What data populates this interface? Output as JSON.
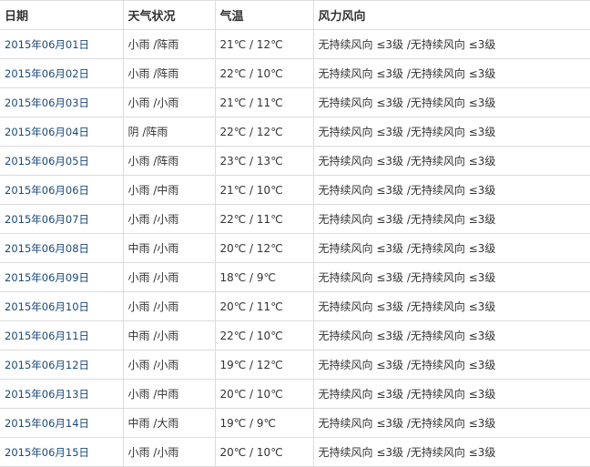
{
  "headers": [
    "日期",
    "天气状况",
    "气温",
    "风力风向"
  ],
  "rows": [
    {
      "date": "2015年06月01日",
      "weather": "小雨 /阵雨",
      "temp": "21℃ / 12℃",
      "wind": "无持续风向 ≤3级 /无持续风向 ≤3级"
    },
    {
      "date": "2015年06月02日",
      "weather": "小雨 /阵雨",
      "temp": "22℃ / 10℃",
      "wind": "无持续风向 ≤3级 /无持续风向 ≤3级"
    },
    {
      "date": "2015年06月03日",
      "weather": "小雨 /小雨",
      "temp": "21℃ / 11℃",
      "wind": "无持续风向 ≤3级 /无持续风向 ≤3级"
    },
    {
      "date": "2015年06月04日",
      "weather": "阴 /阵雨",
      "temp": "22℃ / 12℃",
      "wind": "无持续风向 ≤3级 /无持续风向 ≤3级"
    },
    {
      "date": "2015年06月05日",
      "weather": "小雨 /阵雨",
      "temp": "23℃ / 13℃",
      "wind": "无持续风向 ≤3级 /无持续风向 ≤3级"
    },
    {
      "date": "2015年06月06日",
      "weather": "小雨 /中雨",
      "temp": "21℃ / 10℃",
      "wind": "无持续风向 ≤3级 /无持续风向 ≤3级"
    },
    {
      "date": "2015年06月07日",
      "weather": "小雨 /小雨",
      "temp": "22℃ / 11℃",
      "wind": "无持续风向 ≤3级 /无持续风向 ≤3级"
    },
    {
      "date": "2015年06月08日",
      "weather": "中雨 /小雨",
      "temp": "20℃ / 12℃",
      "wind": "无持续风向 ≤3级 /无持续风向 ≤3级"
    },
    {
      "date": "2015年06月09日",
      "weather": "小雨 /小雨",
      "temp": "18℃ / 9℃",
      "wind": "无持续风向 ≤3级 /无持续风向 ≤3级"
    },
    {
      "date": "2015年06月10日",
      "weather": "小雨 /小雨",
      "temp": "20℃ / 11℃",
      "wind": "无持续风向 ≤3级 /无持续风向 ≤3级"
    },
    {
      "date": "2015年06月11日",
      "weather": "中雨 /小雨",
      "temp": "22℃ / 10℃",
      "wind": "无持续风向 ≤3级 /无持续风向 ≤3级"
    },
    {
      "date": "2015年06月12日",
      "weather": "小雨 /小雨",
      "temp": "19℃ / 12℃",
      "wind": "无持续风向 ≤3级 /无持续风向 ≤3级"
    },
    {
      "date": "2015年06月13日",
      "weather": "小雨 /中雨",
      "temp": "20℃ / 10℃",
      "wind": "无持续风向 ≤3级 /无持续风向 ≤3级"
    },
    {
      "date": "2015年06月14日",
      "weather": "中雨 /大雨",
      "temp": "19℃ / 9℃",
      "wind": "无持续风向 ≤3级 /无持续风向 ≤3级"
    },
    {
      "date": "2015年06月15日",
      "weather": "小雨 /小雨",
      "temp": "20℃ / 10℃",
      "wind": "无持续风向 ≤3级 /无持续风向 ≤3级"
    }
  ]
}
